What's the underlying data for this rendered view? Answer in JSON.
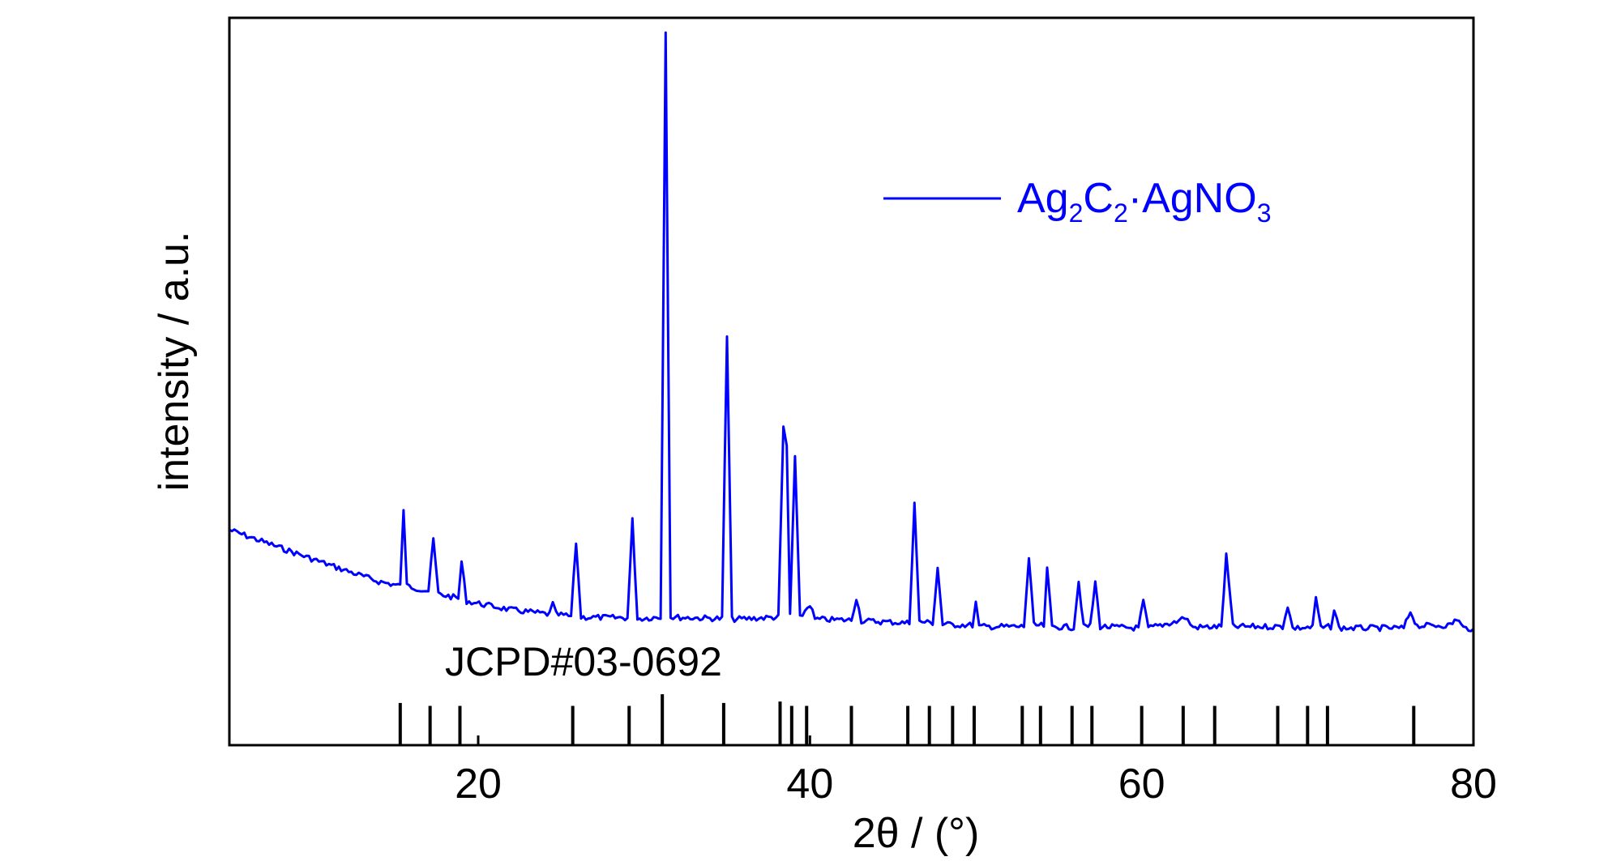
{
  "chart_data": {
    "type": "line",
    "title": "",
    "xlabel": "2θ / (°)",
    "ylabel": "intensity / a.u.",
    "xlim": [
      5,
      80
    ],
    "x_ticks": [
      20,
      40,
      60,
      80
    ],
    "y_ticks_shown": false,
    "grid": false,
    "legend_placement": "top-right",
    "series": [
      {
        "name": "Ag2C2·AgNO3",
        "color": "#0000ff",
        "points": [
          [
            5,
            0.296
          ],
          [
            8,
            0.272
          ],
          [
            11,
            0.248
          ],
          [
            14,
            0.225
          ],
          [
            15.3,
            0.219
          ],
          [
            15.5,
            0.325
          ],
          [
            15.7,
            0.219
          ],
          [
            17.0,
            0.212
          ],
          [
            17.3,
            0.283
          ],
          [
            17.6,
            0.208
          ],
          [
            18.8,
            0.202
          ],
          [
            19.0,
            0.252
          ],
          [
            19.3,
            0.198
          ],
          [
            22,
            0.186
          ],
          [
            24.3,
            0.18
          ],
          [
            24.5,
            0.194
          ],
          [
            24.7,
            0.18
          ],
          [
            25.6,
            0.177
          ],
          [
            25.9,
            0.279
          ],
          [
            26.2,
            0.176
          ],
          [
            29.0,
            0.175
          ],
          [
            29.3,
            0.309
          ],
          [
            29.6,
            0.174
          ],
          [
            31.0,
            0.176
          ],
          [
            31.3,
            0.98
          ],
          [
            31.6,
            0.176
          ],
          [
            34.7,
            0.174
          ],
          [
            35.0,
            0.562
          ],
          [
            35.3,
            0.173
          ],
          [
            38.1,
            0.176
          ],
          [
            38.4,
            0.438
          ],
          [
            38.6,
            0.41
          ],
          [
            38.8,
            0.18
          ],
          [
            39.1,
            0.396
          ],
          [
            39.4,
            0.175
          ],
          [
            40.0,
            0.194
          ],
          [
            40.3,
            0.173
          ],
          [
            42.5,
            0.172
          ],
          [
            42.8,
            0.203
          ],
          [
            43.1,
            0.171
          ],
          [
            46.0,
            0.168
          ],
          [
            46.3,
            0.334
          ],
          [
            46.6,
            0.17
          ],
          [
            47.4,
            0.168
          ],
          [
            47.7,
            0.244
          ],
          [
            48.0,
            0.166
          ],
          [
            49.8,
            0.165
          ],
          [
            50.0,
            0.196
          ],
          [
            50.2,
            0.163
          ],
          [
            52.9,
            0.163
          ],
          [
            53.2,
            0.257
          ],
          [
            53.5,
            0.165
          ],
          [
            54.1,
            0.164
          ],
          [
            54.3,
            0.241
          ],
          [
            54.6,
            0.163
          ],
          [
            55.9,
            0.162
          ],
          [
            56.2,
            0.225
          ],
          [
            56.5,
            0.163
          ],
          [
            56.9,
            0.164
          ],
          [
            57.2,
            0.224
          ],
          [
            57.5,
            0.163
          ],
          [
            59.8,
            0.161
          ],
          [
            60.1,
            0.197
          ],
          [
            60.4,
            0.161
          ],
          [
            62.1,
            0.17
          ],
          [
            62.6,
            0.176
          ],
          [
            63.1,
            0.162
          ],
          [
            64.8,
            0.163
          ],
          [
            65.1,
            0.26
          ],
          [
            65.5,
            0.163
          ],
          [
            68.5,
            0.163
          ],
          [
            68.8,
            0.192
          ],
          [
            69.1,
            0.161
          ],
          [
            70.3,
            0.162
          ],
          [
            70.5,
            0.203
          ],
          [
            70.8,
            0.161
          ],
          [
            71.4,
            0.163
          ],
          [
            71.6,
            0.186
          ],
          [
            71.9,
            0.161
          ],
          [
            75.8,
            0.161
          ],
          [
            76.2,
            0.184
          ],
          [
            76.6,
            0.164
          ],
          [
            78.6,
            0.165
          ],
          [
            79.0,
            0.174
          ],
          [
            79.4,
            0.161
          ],
          [
            80,
            0.16
          ]
        ]
      }
    ],
    "reference": {
      "label": "JCPD#03-0692",
      "color": "#000000",
      "lines": [
        {
          "x": 15.3,
          "h": 0.058
        },
        {
          "x": 17.1,
          "h": 0.054
        },
        {
          "x": 18.9,
          "h": 0.054
        },
        {
          "x": 25.7,
          "h": 0.054
        },
        {
          "x": 29.1,
          "h": 0.054
        },
        {
          "x": 31.1,
          "h": 0.07
        },
        {
          "x": 34.8,
          "h": 0.058
        },
        {
          "x": 38.2,
          "h": 0.06
        },
        {
          "x": 38.9,
          "h": 0.054
        },
        {
          "x": 39.8,
          "h": 0.054
        },
        {
          "x": 42.5,
          "h": 0.054
        },
        {
          "x": 45.9,
          "h": 0.054
        },
        {
          "x": 47.2,
          "h": 0.054
        },
        {
          "x": 48.6,
          "h": 0.054
        },
        {
          "x": 49.9,
          "h": 0.054
        },
        {
          "x": 52.8,
          "h": 0.054
        },
        {
          "x": 53.9,
          "h": 0.054
        },
        {
          "x": 55.8,
          "h": 0.054
        },
        {
          "x": 57.0,
          "h": 0.054
        },
        {
          "x": 60.0,
          "h": 0.054
        },
        {
          "x": 62.5,
          "h": 0.054
        },
        {
          "x": 64.4,
          "h": 0.054
        },
        {
          "x": 68.2,
          "h": 0.054
        },
        {
          "x": 70.0,
          "h": 0.054
        },
        {
          "x": 71.2,
          "h": 0.054
        },
        {
          "x": 76.4,
          "h": 0.054
        }
      ]
    }
  }
}
